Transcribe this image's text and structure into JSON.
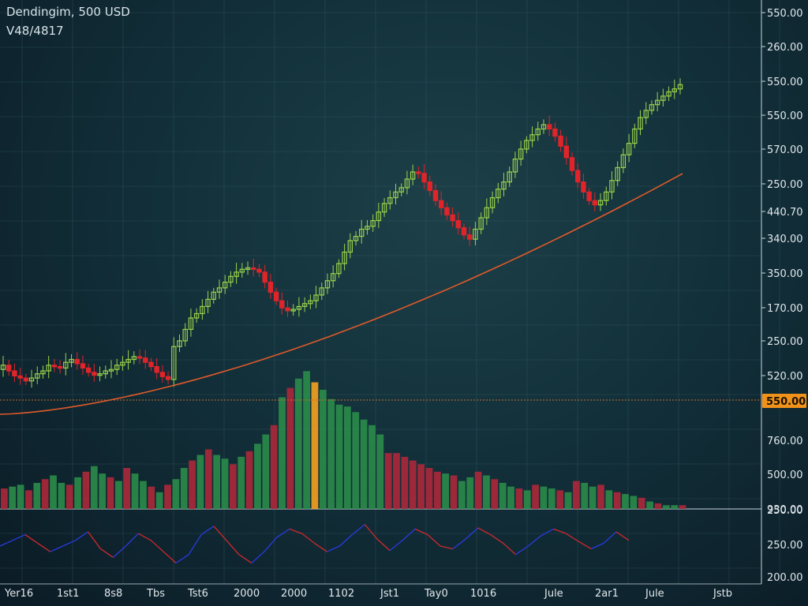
{
  "header": {
    "title": "Dendingim, 500 USD",
    "subtitle": "V48/4817"
  },
  "colors": {
    "up": "#9ad34a",
    "down": "#e0242a",
    "vol_up": "#2a8a4a",
    "vol_down": "#a8283a",
    "vol_highlight": "#f0a020",
    "trend": "#e05a2a",
    "price_line": "#d06a2a",
    "tag_bg": "#f0921a",
    "osc_red": "#d0282e",
    "osc_blue": "#2a3ae0"
  },
  "chart_data": {
    "type": "candlestick",
    "price_axis_labels": [
      "550.00",
      "260.00",
      "550.00",
      "550.00",
      "570.00",
      "250.00",
      "440.70",
      "340.00",
      "350.00",
      "170.00",
      "250.00",
      "520.00"
    ],
    "current_price_tag": "550.00",
    "volume_axis_labels": [
      "760.00",
      "500.00",
      "930.00"
    ],
    "oscillator_axis_labels": [
      "250.00",
      "250.00",
      "200.00"
    ],
    "x_labels": [
      "Yer16",
      "1st1",
      "8s8",
      "Tbs",
      "Tst6",
      "2000",
      "2000",
      "1102",
      "Jst1",
      "Tay0",
      "1016",
      "Jule",
      "2ar1",
      "Jule",
      "Jstb"
    ],
    "candles_close": [
      470,
      462,
      455,
      452,
      448,
      452,
      458,
      462,
      470,
      468,
      466,
      474,
      478,
      472,
      466,
      460,
      456,
      458,
      462,
      464,
      470,
      474,
      478,
      482,
      480,
      474,
      468,
      460,
      454,
      450,
      496,
      504,
      520,
      536,
      542,
      552,
      562,
      572,
      578,
      586,
      594,
      600,
      604,
      606,
      604,
      600,
      586,
      572,
      560,
      550,
      546,
      548,
      552,
      556,
      560,
      568,
      578,
      588,
      598,
      612,
      628,
      644,
      650,
      660,
      664,
      672,
      684,
      696,
      704,
      712,
      718,
      730,
      740,
      738,
      726,
      714,
      700,
      690,
      680,
      672,
      662,
      652,
      646,
      660,
      676,
      690,
      704,
      716,
      726,
      740,
      758,
      772,
      784,
      792,
      800,
      806,
      800,
      790,
      776,
      760,
      742,
      726,
      712,
      700,
      694,
      700,
      712,
      728,
      746,
      764,
      780,
      800,
      816,
      826,
      834,
      840,
      846,
      852,
      856,
      862
    ],
    "trend_line": [
      [
        0,
        0
      ],
      [
        1,
        1
      ]
    ],
    "volume": [
      22,
      24,
      26,
      20,
      28,
      32,
      36,
      28,
      26,
      34,
      40,
      46,
      38,
      34,
      30,
      44,
      38,
      30,
      24,
      18,
      26,
      32,
      44,
      52,
      58,
      64,
      58,
      54,
      48,
      56,
      62,
      70,
      80,
      90,
      120,
      130,
      140,
      148,
      136,
      128,
      118,
      112,
      110,
      104,
      96,
      90,
      80,
      60,
      60,
      56,
      52,
      48,
      44,
      40,
      38,
      36,
      30,
      34,
      40,
      36,
      32,
      28,
      24,
      22,
      20,
      26,
      24,
      22,
      20,
      18,
      30,
      28,
      24,
      26,
      20,
      18,
      16,
      14,
      12,
      8,
      6,
      4,
      4,
      4
    ],
    "oscillator": [
      0.5,
      0.6,
      0.7,
      0.55,
      0.4,
      0.5,
      0.6,
      0.75,
      0.45,
      0.3,
      0.5,
      0.72,
      0.6,
      0.4,
      0.2,
      0.35,
      0.7,
      0.85,
      0.6,
      0.35,
      0.2,
      0.4,
      0.65,
      0.8,
      0.72,
      0.55,
      0.4,
      0.5,
      0.7,
      0.88,
      0.62,
      0.42,
      0.6,
      0.8,
      0.7,
      0.5,
      0.45,
      0.62,
      0.82,
      0.7,
      0.55,
      0.35,
      0.5,
      0.68,
      0.8,
      0.72,
      0.58,
      0.45,
      0.55,
      0.75,
      0.6
    ]
  }
}
